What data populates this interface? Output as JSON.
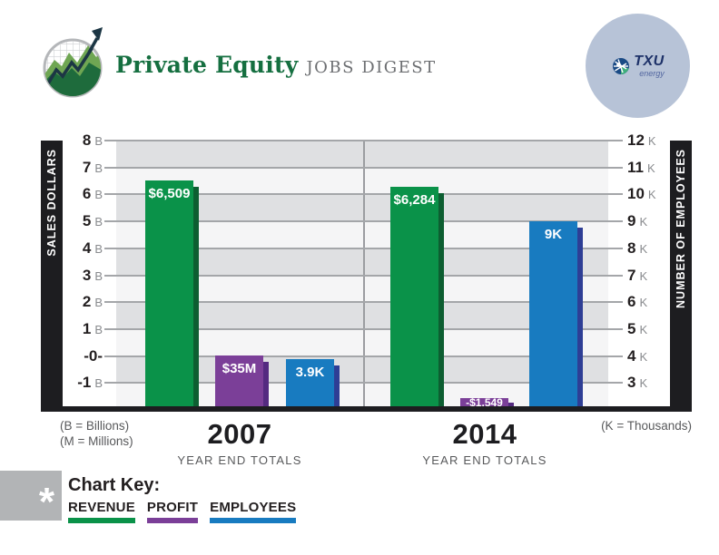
{
  "header": {
    "title": "Private Equity",
    "subtitle": "JOBS DIGEST"
  },
  "partner": {
    "name": "TXU",
    "sub": "energy"
  },
  "chart_data": {
    "type": "bar",
    "title": "Private Equity Jobs Digest — TXU Energy year end totals, 2007 vs 2014",
    "categories": [
      "2007",
      "2014"
    ],
    "category_caption": "YEAR END TOTALS",
    "series": [
      {
        "name": "REVENUE",
        "axis": "left",
        "unit": "millions USD",
        "values": [
          6509,
          6284
        ],
        "labels": [
          "$6,509",
          "$6,284"
        ],
        "color": "#0a9249",
        "shadow": "#0d5e31"
      },
      {
        "name": "PROFIT",
        "axis": "left",
        "unit": "millions USD",
        "values": [
          35,
          -1549
        ],
        "labels": [
          "$35M",
          "-$1,549"
        ],
        "color": "#7b3f98",
        "shadow": "#542a80"
      },
      {
        "name": "EMPLOYEES",
        "axis": "right",
        "unit": "thousands",
        "values": [
          3.9,
          9
        ],
        "labels": [
          "3.9K",
          "9K"
        ],
        "color": "#187bc0",
        "shadow": "#2e3e95"
      }
    ],
    "left_axis": {
      "title": "SALES DOLLARS",
      "ticks": [
        "8 B",
        "7 B",
        "6 B",
        "5 B",
        "4 B",
        "3 B",
        "2 B",
        "1 B",
        "-0-",
        "-1 B"
      ],
      "tick_values_billions": [
        8,
        7,
        6,
        5,
        4,
        3,
        2,
        1,
        0,
        -1
      ],
      "range_billions": [
        -2,
        8
      ],
      "notes": [
        "(B = Billions)",
        "(M = Millions)"
      ]
    },
    "right_axis": {
      "title": "NUMBER OF EMPLOYEES",
      "ticks": [
        "12 K",
        "11 K",
        "10 K",
        "9 K",
        "8 K",
        "7 K",
        "6 K",
        "5 K",
        "4 K",
        "3 K"
      ],
      "tick_values_thousands": [
        12,
        11,
        10,
        9,
        8,
        7,
        6,
        5,
        4,
        3
      ],
      "range_thousands": [
        2,
        12
      ],
      "note": "(K = Thousands)"
    },
    "grid": "horizontal alternating gray/white bands, 1 unit each, dark gray gridlines",
    "legend_position": "bottom-left"
  },
  "key": {
    "asterisk": "*",
    "title": "Chart Key:",
    "items": [
      {
        "label": "REVENUE",
        "color": "#0a9249"
      },
      {
        "label": "PROFIT",
        "color": "#7b3f98"
      },
      {
        "label": "EMPLOYEES",
        "color": "#187bc0"
      }
    ]
  },
  "colors": {
    "brand_green": "#156f40",
    "subtitle_gray": "#6c6e71",
    "axis_bar_black": "#1d1d20",
    "band_gray": "#dfe0e2",
    "band_light": "#f5f5f6",
    "gridline": "#a4a6a9",
    "partner_circle": "#b7c3d7",
    "note_gray": "#58595b"
  }
}
